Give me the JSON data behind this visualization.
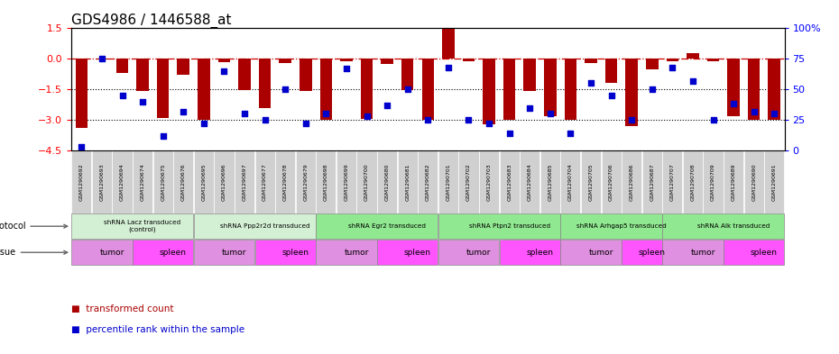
{
  "title": "GDS4986 / 1446588_at",
  "samples": [
    "GSM1290692",
    "GSM1290693",
    "GSM1290694",
    "GSM1290674",
    "GSM1290675",
    "GSM1290676",
    "GSM1290695",
    "GSM1290696",
    "GSM1290697",
    "GSM1290677",
    "GSM1290678",
    "GSM1290679",
    "GSM1290698",
    "GSM1290699",
    "GSM1290700",
    "GSM1290680",
    "GSM1290681",
    "GSM1290682",
    "GSM1290701",
    "GSM1290702",
    "GSM1290703",
    "GSM1290683",
    "GSM1290684",
    "GSM1290685",
    "GSM1290704",
    "GSM1290705",
    "GSM1290706",
    "GSM1290686",
    "GSM1290687",
    "GSM1290707",
    "GSM1290708",
    "GSM1290709",
    "GSM1290689",
    "GSM1290690",
    "GSM1290691"
  ],
  "red_values": [
    -3.4,
    -0.05,
    -0.7,
    -1.6,
    -2.9,
    -0.8,
    -3.0,
    -0.15,
    -1.55,
    -2.4,
    -0.2,
    -1.6,
    -3.0,
    -0.1,
    -2.95,
    -0.25,
    -1.55,
    -3.0,
    1.55,
    -0.1,
    -3.2,
    -3.0,
    -1.6,
    -2.8,
    -3.0,
    -0.2,
    -1.2,
    -3.3,
    -0.5,
    -0.1,
    0.3,
    -0.1,
    -2.8,
    -3.0,
    -3.0
  ],
  "blue_values": [
    3,
    75,
    45,
    40,
    12,
    32,
    22,
    65,
    30,
    25,
    50,
    22,
    30,
    67,
    28,
    37,
    50,
    25,
    68,
    25,
    22,
    14,
    35,
    30,
    14,
    55,
    45,
    25,
    50,
    68,
    57,
    25,
    38,
    32,
    30
  ],
  "ylim_left": [
    -4.5,
    1.5
  ],
  "ylim_right": [
    0,
    100
  ],
  "yticks_left": [
    1.5,
    0,
    -1.5,
    -3.0,
    -4.5
  ],
  "yticks_right": [
    0,
    25,
    50,
    75,
    100
  ],
  "ytick_labels_right": [
    "0",
    "25",
    "50",
    "75",
    "100%"
  ],
  "hline_zero": 0,
  "hlines_dotted": [
    -1.5,
    -3.0
  ],
  "protocols": [
    {
      "label": "shRNA Lacz transduced\n(control)",
      "start": 0,
      "end": 6,
      "color": "#d4f0d4"
    },
    {
      "label": "shRNA Ppp2r2d transduced",
      "start": 6,
      "end": 12,
      "color": "#d4f0d4"
    },
    {
      "label": "shRNA Egr2 transduced",
      "start": 12,
      "end": 18,
      "color": "#90e890"
    },
    {
      "label": "shRNA Ptpn2 transduced",
      "start": 18,
      "end": 24,
      "color": "#90e890"
    },
    {
      "label": "shRNA Arhgap5 transduced",
      "start": 24,
      "end": 29,
      "color": "#90e890"
    },
    {
      "label": "shRNA Alk transduced",
      "start": 29,
      "end": 35,
      "color": "#90e890"
    }
  ],
  "tissues": [
    {
      "label": "tumor",
      "start": 0,
      "end": 3,
      "color": "#e090e0"
    },
    {
      "label": "spleen",
      "start": 3,
      "end": 6,
      "color": "#ff55ff"
    },
    {
      "label": "tumor",
      "start": 6,
      "end": 9,
      "color": "#e090e0"
    },
    {
      "label": "spleen",
      "start": 9,
      "end": 12,
      "color": "#ff55ff"
    },
    {
      "label": "tumor",
      "start": 12,
      "end": 15,
      "color": "#e090e0"
    },
    {
      "label": "spleen",
      "start": 15,
      "end": 18,
      "color": "#ff55ff"
    },
    {
      "label": "tumor",
      "start": 18,
      "end": 21,
      "color": "#e090e0"
    },
    {
      "label": "spleen",
      "start": 21,
      "end": 24,
      "color": "#ff55ff"
    },
    {
      "label": "tumor",
      "start": 24,
      "end": 27,
      "color": "#e090e0"
    },
    {
      "label": "spleen",
      "start": 27,
      "end": 29,
      "color": "#ff55ff"
    },
    {
      "label": "tumor",
      "start": 29,
      "end": 32,
      "color": "#e090e0"
    },
    {
      "label": "spleen",
      "start": 32,
      "end": 35,
      "color": "#ff55ff"
    }
  ],
  "bar_color": "#aa0000",
  "dot_color": "#0000cc",
  "sample_box_color": "#d0d0d0",
  "background_color": "#ffffff",
  "title_fontsize": 11,
  "axis_fontsize": 8
}
